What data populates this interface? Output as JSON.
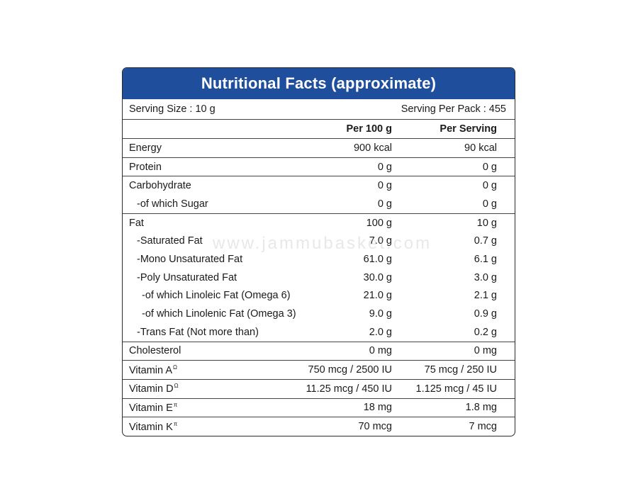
{
  "title": "Nutritional Facts (approximate)",
  "serving_size": "Serving Size : 10 g",
  "serving_per_pack": "Serving Per Pack : 455",
  "headers": {
    "per100": "Per 100 g",
    "perServing": "Per Serving"
  },
  "groups": [
    [
      {
        "name": "Energy",
        "per100": "900 kcal",
        "perServing": "90 kcal"
      }
    ],
    [
      {
        "name": "Protein",
        "per100": "0 g",
        "perServing": "0 g"
      }
    ],
    [
      {
        "name": "Carbohydrate",
        "per100": "0 g",
        "perServing": "0 g"
      },
      {
        "name": "-of which Sugar",
        "per100": "0 g",
        "perServing": "0 g"
      }
    ],
    [
      {
        "name": "Fat",
        "per100": "100 g",
        "perServing": "10 g"
      },
      {
        "name": "-Saturated Fat",
        "per100": "7.0 g",
        "perServing": "0.7 g"
      },
      {
        "name": "-Mono Unsaturated Fat",
        "per100": "61.0 g",
        "perServing": "6.1 g"
      },
      {
        "name": "-Poly Unsaturated Fat",
        "per100": "30.0 g",
        "perServing": "3.0 g"
      },
      {
        "name": "-of which Linoleic Fat (Omega 6)",
        "per100": "21.0 g",
        "perServing": "2.1 g"
      },
      {
        "name": "-of which Linolenic Fat (Omega 3)",
        "per100": "9.0 g",
        "perServing": "0.9 g"
      },
      {
        "name": "-Trans Fat (Not more than)",
        "per100": "2.0 g",
        "perServing": "0.2 g"
      }
    ],
    [
      {
        "name": "Cholesterol",
        "per100": "0 mg",
        "perServing": "0 mg"
      }
    ],
    [
      {
        "name": "Vitamin A",
        "sup": "Ω",
        "per100": "750 mcg / 2500 IU",
        "perServing": "75 mcg / 250 IU"
      }
    ],
    [
      {
        "name": "Vitamin D",
        "sup": "Ω",
        "per100": "11.25 mcg / 450 IU",
        "perServing": "1.125 mcg / 45 IU"
      }
    ],
    [
      {
        "name": "Vitamin E",
        "sup": "π",
        "per100": "18 mg",
        "perServing": "1.8 mg"
      }
    ],
    [
      {
        "name": "Vitamin K",
        "sup": "π",
        "per100": "70 mcg",
        "perServing": "7 mcg"
      }
    ]
  ],
  "indent": [
    [
      0
    ],
    [
      0
    ],
    [
      0,
      1
    ],
    [
      0,
      1,
      1,
      1,
      2,
      2,
      1
    ],
    [
      0
    ],
    [
      0
    ],
    [
      0
    ],
    [
      0
    ],
    [
      0
    ]
  ],
  "watermark": "www.jammubasket.com",
  "colors": {
    "header_bg": "#1f4e9c",
    "header_text": "#ffffff",
    "border": "#2a2a2a"
  }
}
